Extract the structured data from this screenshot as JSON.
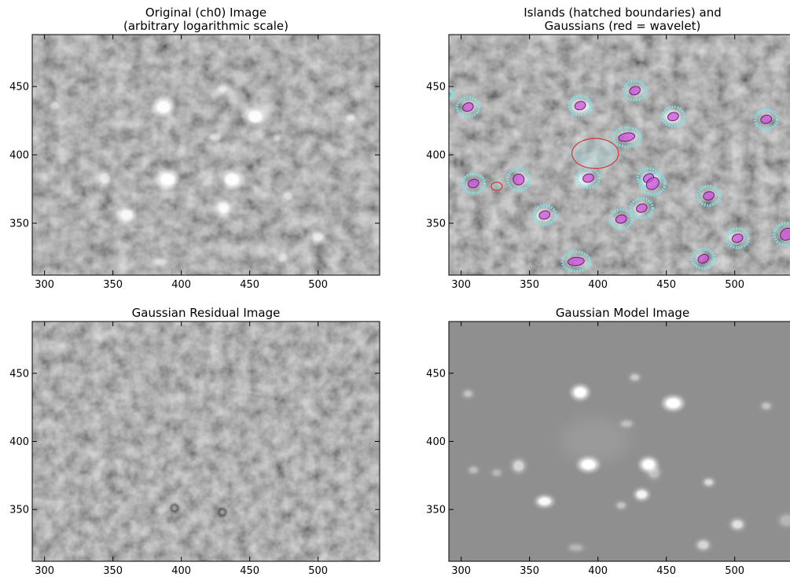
{
  "chart_data": [
    {
      "type": "image",
      "panel": "original",
      "title_lines": [
        "Original (ch0) Image",
        "(arbitrary logarithmic scale)"
      ],
      "xlim": [
        291,
        545
      ],
      "ylim": [
        312,
        488
      ],
      "xticks": [
        300,
        350,
        400,
        450,
        500
      ],
      "yticks": [
        350,
        400,
        450
      ],
      "sources": [
        {
          "x": 387,
          "y": 435,
          "rx": 7,
          "ry": 6,
          "bright": 0.95
        },
        {
          "x": 454,
          "y": 428,
          "rx": 7,
          "ry": 6,
          "bright": 0.95
        },
        {
          "x": 425,
          "y": 413,
          "rx": 5,
          "ry": 3,
          "bright": 0.45
        },
        {
          "x": 390,
          "y": 382,
          "rx": 7,
          "ry": 6,
          "bright": 1.0
        },
        {
          "x": 437,
          "y": 382,
          "rx": 7,
          "ry": 6,
          "bright": 0.95
        },
        {
          "x": 431,
          "y": 361,
          "rx": 5,
          "ry": 5,
          "bright": 0.85
        },
        {
          "x": 360,
          "y": 356,
          "rx": 6,
          "ry": 5,
          "bright": 0.85
        },
        {
          "x": 344,
          "y": 383,
          "rx": 5,
          "ry": 5,
          "bright": 0.55
        },
        {
          "x": 307,
          "y": 436,
          "rx": 4,
          "ry": 4,
          "bright": 0.45
        },
        {
          "x": 478,
          "y": 370,
          "rx": 4,
          "ry": 4,
          "bright": 0.5
        },
        {
          "x": 500,
          "y": 340,
          "rx": 5,
          "ry": 4,
          "bright": 0.65
        },
        {
          "x": 524,
          "y": 427,
          "rx": 4,
          "ry": 3,
          "bright": 0.55
        },
        {
          "x": 385,
          "y": 322,
          "rx": 5,
          "ry": 3,
          "bright": 0.4
        },
        {
          "x": 474,
          "y": 325,
          "rx": 4,
          "ry": 4,
          "bright": 0.5
        },
        {
          "x": 430,
          "y": 448,
          "rx": 4,
          "ry": 3,
          "bright": 0.45
        },
        {
          "x": 470,
          "y": 412,
          "rx": 3,
          "ry": 3,
          "bright": 0.4
        }
      ]
    },
    {
      "type": "image",
      "panel": "islands",
      "title_lines": [
        "Islands (hatched boundaries) and",
        "Gaussians (red = wavelet)"
      ],
      "xlim": [
        291,
        545
      ],
      "ylim": [
        312,
        488
      ],
      "xticks": [
        300,
        350,
        400,
        450,
        500
      ],
      "yticks": [
        350,
        400,
        450
      ],
      "gaussians": [
        {
          "x": 305,
          "y": 435,
          "rx": 4,
          "ry": 3,
          "angle": -20
        },
        {
          "x": 387,
          "y": 436,
          "rx": 4,
          "ry": 3,
          "angle": -15
        },
        {
          "x": 427,
          "y": 447,
          "rx": 4,
          "ry": 3,
          "angle": -20
        },
        {
          "x": 455,
          "y": 428,
          "rx": 4,
          "ry": 3,
          "angle": -15
        },
        {
          "x": 523,
          "y": 426,
          "rx": 4,
          "ry": 3,
          "angle": -15
        },
        {
          "x": 421,
          "y": 413,
          "rx": 6,
          "ry": 3,
          "angle": -10
        },
        {
          "x": 309,
          "y": 379,
          "rx": 4,
          "ry": 3,
          "angle": -15
        },
        {
          "x": 342,
          "y": 382,
          "rx": 4,
          "ry": 4,
          "angle": -30
        },
        {
          "x": 393,
          "y": 383,
          "rx": 4,
          "ry": 3,
          "angle": -15
        },
        {
          "x": 437,
          "y": 383,
          "rx": 4,
          "ry": 3,
          "angle": -30
        },
        {
          "x": 440,
          "y": 379,
          "rx": 5,
          "ry": 4,
          "angle": -40
        },
        {
          "x": 432,
          "y": 361,
          "rx": 4,
          "ry": 3,
          "angle": -20
        },
        {
          "x": 361,
          "y": 356,
          "rx": 4,
          "ry": 3,
          "angle": -15
        },
        {
          "x": 417,
          "y": 353,
          "rx": 4,
          "ry": 3,
          "angle": -15
        },
        {
          "x": 481,
          "y": 370,
          "rx": 4,
          "ry": 3,
          "angle": -15
        },
        {
          "x": 502,
          "y": 339,
          "rx": 4,
          "ry": 3,
          "angle": -15
        },
        {
          "x": 538,
          "y": 342,
          "rx": 5,
          "ry": 4,
          "angle": -40
        },
        {
          "x": 477,
          "y": 324,
          "rx": 4,
          "ry": 3,
          "angle": -25
        },
        {
          "x": 384,
          "y": 322,
          "rx": 6,
          "ry": 3,
          "angle": -5
        }
      ],
      "wavelet_gaussians": [
        {
          "x": 398,
          "y": 401,
          "rx": 17,
          "ry": 11,
          "angle": 0
        },
        {
          "x": 326,
          "y": 377,
          "rx": 4,
          "ry": 3,
          "angle": 0
        }
      ],
      "island_arcs": [
        {
          "x": 291,
          "y": 444,
          "rx": 3,
          "ry": 3
        }
      ]
    },
    {
      "type": "image",
      "panel": "residual",
      "title_lines": [
        "Gaussian Residual Image"
      ],
      "xlim": [
        291,
        545
      ],
      "ylim": [
        312,
        488
      ],
      "xticks": [
        300,
        350,
        400,
        450,
        500
      ],
      "yticks": [
        350,
        400,
        450
      ],
      "features": [
        {
          "x": 336,
          "y": 390,
          "kind": "faint-source"
        },
        {
          "x": 395,
          "y": 351,
          "kind": "dark-hole"
        },
        {
          "x": 430,
          "y": 348,
          "kind": "dark-hole"
        },
        {
          "x": 440,
          "y": 380,
          "kind": "faint-source"
        },
        {
          "x": 447,
          "y": 443,
          "kind": "streak"
        }
      ]
    },
    {
      "type": "image",
      "panel": "model",
      "title_lines": [
        "Gaussian Model Image"
      ],
      "xlim": [
        291,
        545
      ],
      "ylim": [
        312,
        488
      ],
      "xticks": [
        300,
        350,
        400,
        450,
        500
      ],
      "yticks": [
        350,
        400,
        450
      ],
      "background": "#8f8f8f",
      "sources": [
        {
          "x": 305,
          "y": 435,
          "rx": 4,
          "ry": 3,
          "bright": 0.35
        },
        {
          "x": 387,
          "y": 436,
          "rx": 6,
          "ry": 5,
          "bright": 1.0
        },
        {
          "x": 427,
          "y": 447,
          "rx": 4,
          "ry": 3,
          "bright": 0.4
        },
        {
          "x": 455,
          "y": 428,
          "rx": 7,
          "ry": 5,
          "bright": 1.0
        },
        {
          "x": 523,
          "y": 426,
          "rx": 4,
          "ry": 3,
          "bright": 0.35
        },
        {
          "x": 421,
          "y": 413,
          "rx": 5,
          "ry": 3,
          "bright": 0.3
        },
        {
          "x": 398,
          "y": 401,
          "rx": 22,
          "ry": 14,
          "bright": 0.18
        },
        {
          "x": 309,
          "y": 379,
          "rx": 4,
          "ry": 3,
          "bright": 0.3
        },
        {
          "x": 326,
          "y": 377,
          "rx": 4,
          "ry": 3,
          "bright": 0.25
        },
        {
          "x": 342,
          "y": 382,
          "rx": 5,
          "ry": 5,
          "bright": 0.5
        },
        {
          "x": 393,
          "y": 383,
          "rx": 7,
          "ry": 5,
          "bright": 1.0
        },
        {
          "x": 437,
          "y": 383,
          "rx": 6,
          "ry": 5,
          "bright": 1.0
        },
        {
          "x": 441,
          "y": 377,
          "rx": 5,
          "ry": 5,
          "bright": 0.3
        },
        {
          "x": 432,
          "y": 361,
          "rx": 5,
          "ry": 4,
          "bright": 0.85
        },
        {
          "x": 361,
          "y": 356,
          "rx": 6,
          "ry": 4,
          "bright": 0.9
        },
        {
          "x": 417,
          "y": 353,
          "rx": 4,
          "ry": 3,
          "bright": 0.35
        },
        {
          "x": 481,
          "y": 370,
          "rx": 4,
          "ry": 3,
          "bright": 0.55
        },
        {
          "x": 502,
          "y": 339,
          "rx": 5,
          "ry": 4,
          "bright": 0.6
        },
        {
          "x": 538,
          "y": 342,
          "rx": 6,
          "ry": 5,
          "bright": 0.25
        },
        {
          "x": 477,
          "y": 324,
          "rx": 5,
          "ry": 4,
          "bright": 0.5
        },
        {
          "x": 384,
          "y": 322,
          "rx": 6,
          "ry": 3,
          "bright": 0.25
        }
      ]
    }
  ]
}
